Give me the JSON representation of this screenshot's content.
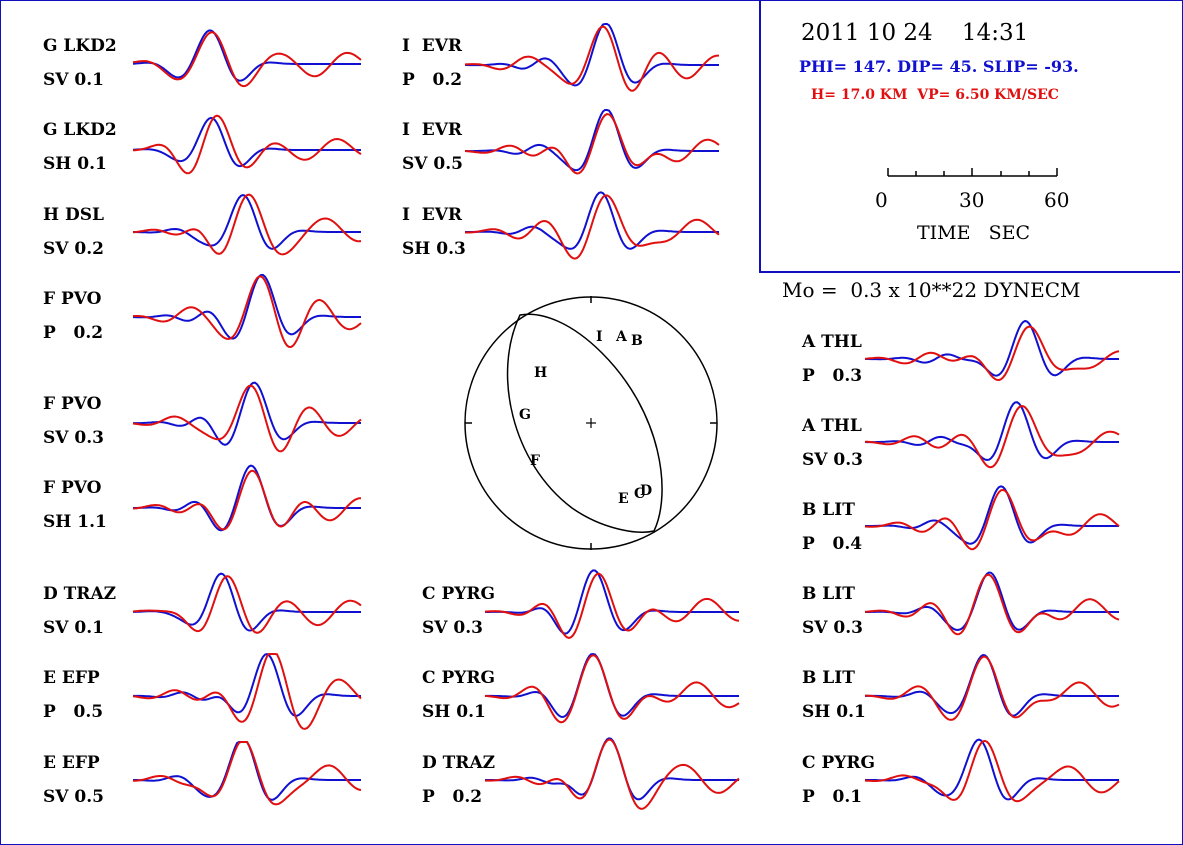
{
  "event": {
    "datetime": "2011 10 24    14:31",
    "mechanism": "PHI= 147. DIP= 45. SLIP= -93.",
    "depth_velocity": "H= 17.0 KM  VP= 6.50 KM/SEC",
    "moment": "Mo =  0.3 x 10**22 DYNECM"
  },
  "time_scale": {
    "ticks": [
      "0",
      "30",
      "60"
    ],
    "label": "TIME   SEC"
  },
  "colors": {
    "observed": "#1010d0",
    "synthetic": "#e01010",
    "frame": "#1010c0"
  },
  "traces": [
    {
      "station": "G LKD2",
      "component": "SV 0.1"
    },
    {
      "station": "G LKD2",
      "component": "SH 0.1"
    },
    {
      "station": "H DSL",
      "component": "SV 0.2"
    },
    {
      "station": "F PVO",
      "component": "P   0.2"
    },
    {
      "station": "F PVO",
      "component": "SV 0.3"
    },
    {
      "station": "F PVO",
      "component": "SH 1.1"
    },
    {
      "station": "D TRAZ",
      "component": "SV 0.1"
    },
    {
      "station": "E EFP",
      "component": "P   0.5"
    },
    {
      "station": "E EFP",
      "component": "SV 0.5"
    },
    {
      "station": "I  EVR",
      "component": "P   0.2"
    },
    {
      "station": "I  EVR",
      "component": "SV 0.5"
    },
    {
      "station": "I  EVR",
      "component": "SH 0.3"
    },
    {
      "station": "C PYRG",
      "component": "SV 0.3"
    },
    {
      "station": "C PYRG",
      "component": "SH 0.1"
    },
    {
      "station": "D TRAZ",
      "component": "P   0.2"
    },
    {
      "station": "A THL",
      "component": "P   0.3"
    },
    {
      "station": "A THL",
      "component": "SV 0.3"
    },
    {
      "station": "B LIT",
      "component": "P   0.4"
    },
    {
      "station": "B LIT",
      "component": "SV 0.3"
    },
    {
      "station": "B LIT",
      "component": "SH 0.1"
    },
    {
      "station": "C PYRG",
      "component": "P   0.1"
    }
  ],
  "focal_sphere": {
    "station_letters": [
      "I",
      "A",
      "B",
      "H",
      "G",
      "F",
      "E",
      "C",
      "D"
    ]
  }
}
